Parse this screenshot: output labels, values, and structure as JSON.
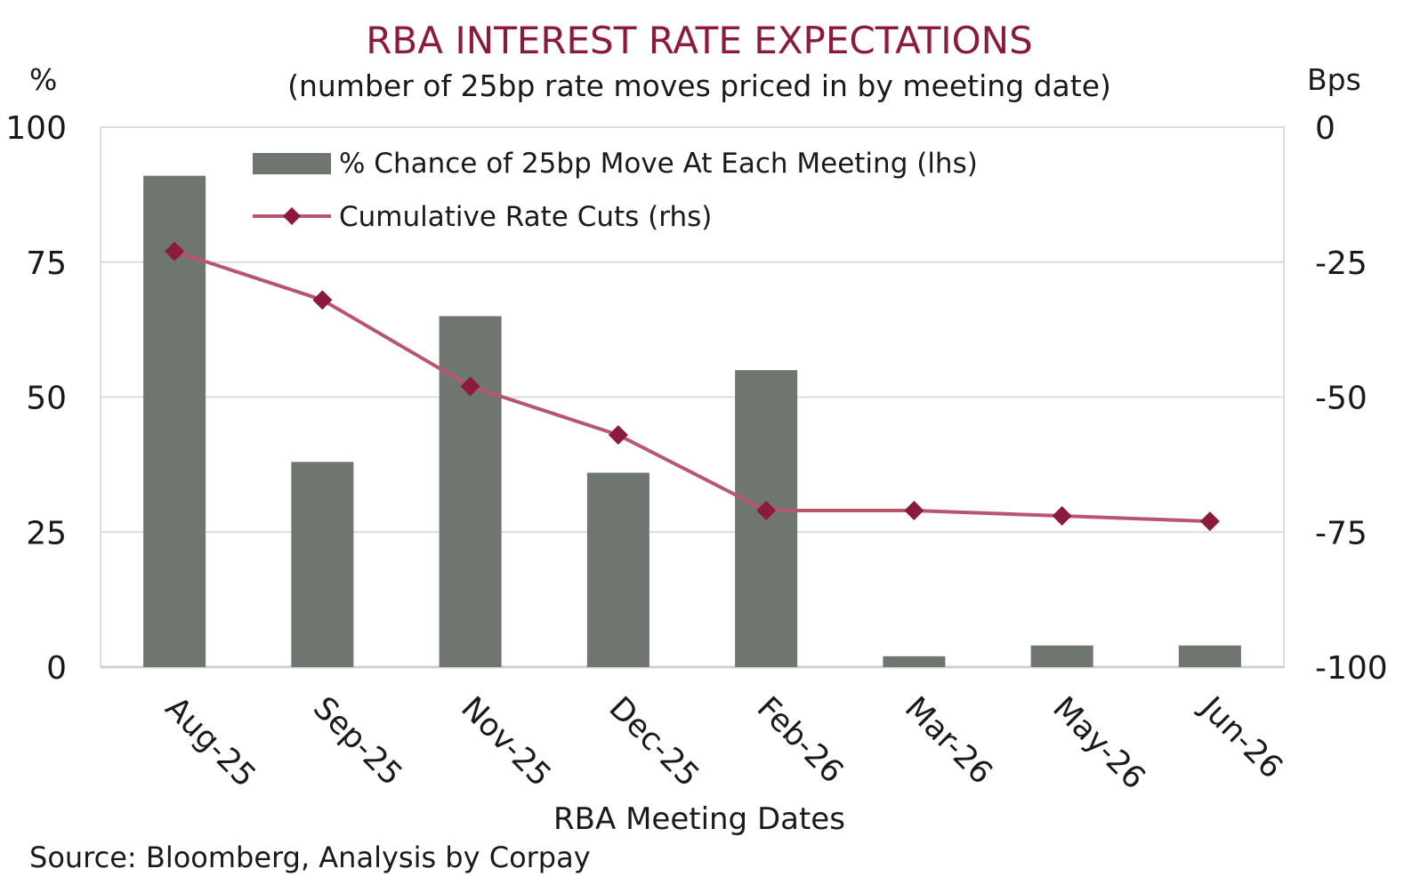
{
  "chart_data": {
    "type": "bar",
    "title": "RBA INTEREST RATE EXPECTATIONS",
    "subtitle": "(number of 25bp rate moves priced in by meeting date)",
    "xlabel": "RBA Meeting Dates",
    "y_left_unit": "%",
    "y_right_unit": "Bps",
    "source": "Source: Bloomberg, Analysis by Corpay",
    "categories": [
      "Aug-25",
      "Sep-25",
      "Nov-25",
      "Dec-25",
      "Feb-26",
      "Mar-26",
      "May-26",
      "Jun-26"
    ],
    "ylim_left": [
      0,
      100
    ],
    "yticks_left": [
      "0",
      "25",
      "50",
      "75",
      "100"
    ],
    "ylim_right": [
      -100,
      0
    ],
    "yticks_right": [
      "-100",
      "-75",
      "-50",
      "-25",
      "0"
    ],
    "grid": true,
    "legend_position": "top-left",
    "series": [
      {
        "name": "% Chance of 25bp Move At Each Meeting (lhs)",
        "kind": "bar",
        "axis": "left",
        "color": "#6f7670",
        "values": [
          91,
          38,
          65,
          36,
          55,
          2,
          4,
          4
        ]
      },
      {
        "name": "Cumulative Rate Cuts (rhs)",
        "kind": "line",
        "axis": "right",
        "color": "#8b1a3c",
        "line_color": "#b8566e",
        "values": [
          -23,
          -32,
          -48,
          -57,
          -71,
          -71,
          -72,
          -73
        ]
      }
    ],
    "title_color": "#8b1a3c"
  }
}
